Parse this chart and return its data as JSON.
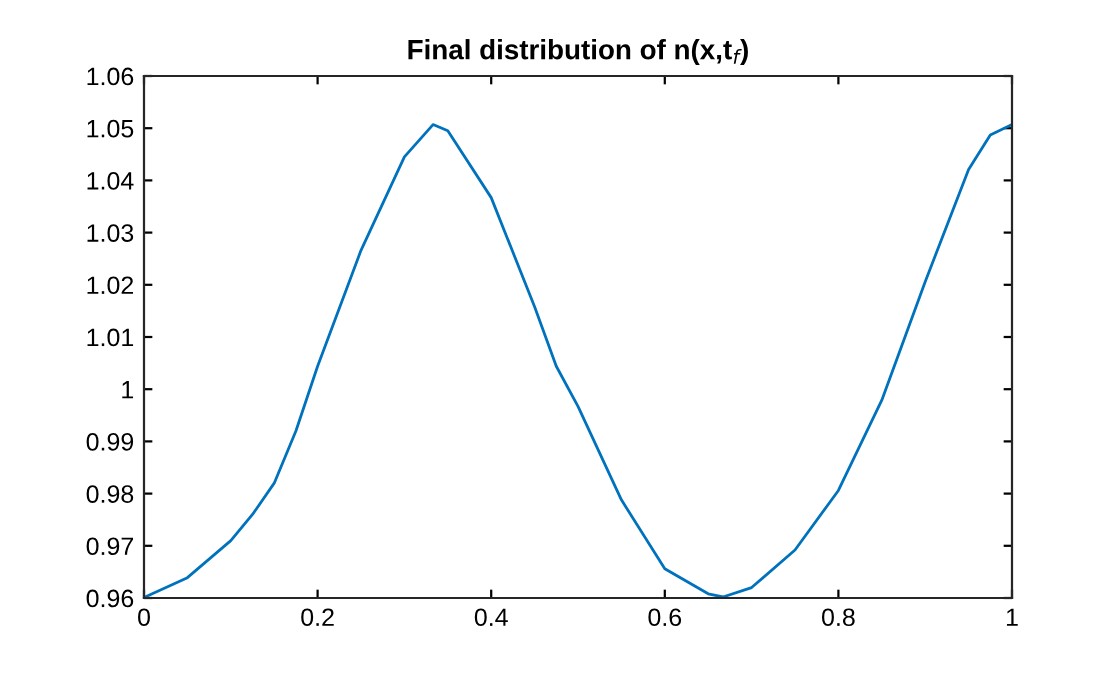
{
  "chart_data": {
    "type": "line",
    "title": "Final distribution of n(x,t$_{f}$)",
    "x": [
      0,
      0.05,
      0.1,
      0.125,
      0.15,
      0.175,
      0.2,
      0.25,
      0.3,
      0.333,
      0.35,
      0.4,
      0.45,
      0.475,
      0.5,
      0.55,
      0.6,
      0.65,
      0.667,
      0.7,
      0.75,
      0.8,
      0.85,
      0.9,
      0.95,
      0.975,
      1.0
    ],
    "series": [
      {
        "color": "#0072bd",
        "values": [
          0.9601,
          0.9639,
          0.971,
          0.976,
          0.982,
          0.992,
          1.0044,
          1.0266,
          1.0445,
          1.0507,
          1.0495,
          1.0367,
          1.0158,
          1.0044,
          0.9967,
          0.9788,
          0.9656,
          0.9608,
          0.9602,
          0.962,
          0.9692,
          0.9806,
          0.9979,
          1.0206,
          1.0421,
          1.0487,
          1.0507
        ]
      }
    ],
    "xlim": [
      0,
      1
    ],
    "xticks": [
      0,
      0.2,
      0.4,
      0.6,
      0.8,
      1
    ],
    "ylim": [
      0.96,
      1.06
    ],
    "yticks": [
      0.96,
      0.97,
      0.98,
      0.99,
      1,
      1.01,
      1.02,
      1.03,
      1.04,
      1.05,
      1.06
    ],
    "grid": false,
    "line_style": "solid",
    "marker": "none"
  }
}
